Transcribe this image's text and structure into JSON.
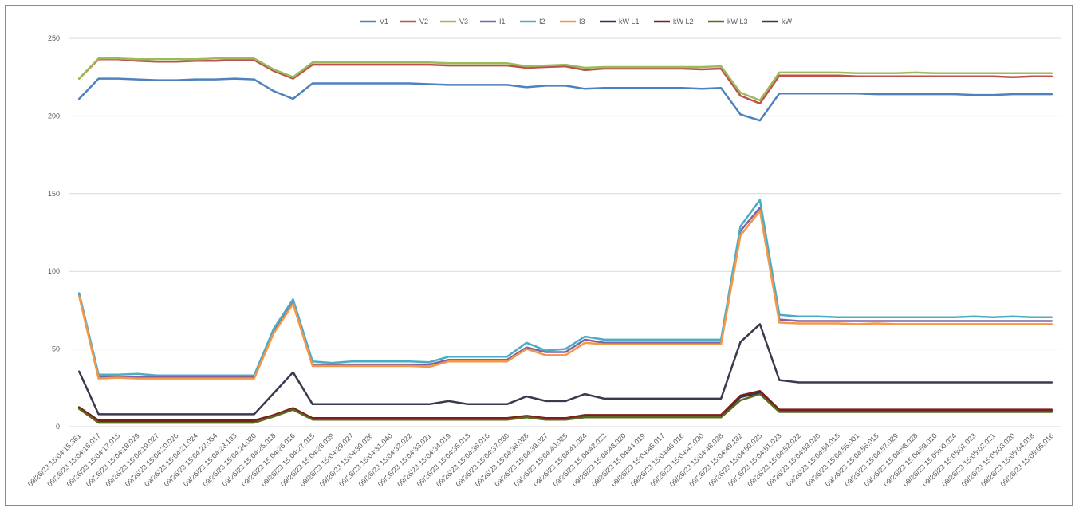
{
  "chart_data": {
    "type": "line",
    "title": "",
    "xlabel": "",
    "ylabel": "",
    "ylim": [
      0,
      250
    ],
    "yticks": [
      0,
      50,
      100,
      150,
      200,
      250
    ],
    "grid": true,
    "legend_position": "top",
    "categories": [
      "09/26/23 15:04:15.361",
      "09/26/23 15:04:16.017",
      "09/26/23 15:04:17.015",
      "09/26/23 15:04:18.029",
      "09/26/23 15:04:19.027",
      "09/26/23 15:04:20.026",
      "09/26/23 15:04:21.024",
      "09/26/23 15:04:22.054",
      "09/26/23 15:04:23.193",
      "09/26/23 15:04:24.020",
      "09/26/23 15:04:25.018",
      "09/26/23 15:04:26.016",
      "09/26/23 15:04:27.015",
      "09/26/23 15:04:28.039",
      "09/26/23 15:04:29.027",
      "09/26/23 15:04:30.026",
      "09/26/23 15:04:31.040",
      "09/26/23 15:04:32.022",
      "09/26/23 15:04:33.021",
      "09/26/23 15:04:34.019",
      "09/26/23 15:04:35.018",
      "09/26/23 15:04:36.016",
      "09/26/23 15:04:37.030",
      "09/26/23 15:04:38.028",
      "09/26/23 15:04:39.027",
      "09/26/23 15:04:40.025",
      "09/26/23 15:04:41.024",
      "09/26/23 15:04:42.022",
      "09/26/23 15:04:43.020",
      "09/26/23 15:04:44.019",
      "09/26/23 15:04:45.017",
      "09/26/23 15:04:46.016",
      "09/26/23 15:04:47.030",
      "09/26/23 15:04:48.028",
      "09/26/23 15:04:49.182",
      "09/26/23 15:04:50.025",
      "09/26/23 15:04:51.023",
      "09/26/23 15:04:52.022",
      "09/26/23 15:04:53.020",
      "09/26/23 15:04:54.018",
      "09/26/23 15:04:55.001",
      "09/26/23 15:04:56.015",
      "09/26/23 15:04:57.029",
      "09/26/23 15:04:58.028",
      "09/26/23 15:04:59.010",
      "09/26/23 15:05:00.024",
      "09/26/23 15:05:01.023",
      "09/26/23 15:05:02.021",
      "09/26/23 15:05:03.020",
      "09/26/23 15:05:04.018",
      "09/26/23 15:05:05.016"
    ],
    "series": [
      {
        "name": "V1",
        "color": "#4f81bd",
        "values": [
          211,
          224,
          224,
          223.5,
          223,
          223,
          223.5,
          223.5,
          224,
          223.5,
          216,
          211,
          221,
          221,
          221,
          221,
          221,
          221,
          220.5,
          220,
          220,
          220,
          220,
          218.5,
          219.5,
          219.5,
          217.5,
          218,
          218,
          218,
          218,
          218,
          217.5,
          218,
          201,
          197,
          214.5,
          214.5,
          214.5,
          214.5,
          214.5,
          214,
          214,
          214,
          214,
          214,
          213.5,
          213.5,
          214,
          214,
          214
        ]
      },
      {
        "name": "V2",
        "color": "#c0504d",
        "values": [
          224,
          236.5,
          236.5,
          235.5,
          235,
          235,
          235.5,
          235.5,
          236,
          236,
          229,
          224,
          233,
          233,
          233,
          233,
          233,
          233,
          233,
          232.5,
          232.5,
          232.5,
          232.5,
          231,
          231.5,
          232,
          229.5,
          230.5,
          230.5,
          230.5,
          230.5,
          230.5,
          230,
          230.5,
          213,
          208,
          226,
          226,
          226,
          226,
          225.5,
          225.5,
          225.5,
          225.5,
          225.5,
          225.5,
          225.5,
          225.5,
          225,
          225.5,
          225.5
        ]
      },
      {
        "name": "V3",
        "color": "#9bbb59",
        "values": [
          224,
          237,
          237,
          236.5,
          236.5,
          236.5,
          236.5,
          237,
          237,
          237,
          230,
          225,
          234.5,
          234.5,
          234.5,
          234.5,
          234.5,
          234.5,
          234.5,
          234,
          234,
          234,
          234,
          232,
          232.5,
          233,
          231,
          231.5,
          231.5,
          231.5,
          231.5,
          231.5,
          231.5,
          232,
          215,
          210,
          228,
          228,
          228,
          228,
          227.5,
          227.5,
          227.5,
          228,
          227.5,
          227.5,
          227.5,
          227.5,
          227.5,
          227.5,
          227.5
        ]
      },
      {
        "name": "I1",
        "color": "#8064a2",
        "values": [
          85,
          32,
          32,
          32,
          32,
          32,
          32,
          32,
          32,
          32,
          62,
          80,
          40,
          40,
          40,
          40,
          40,
          40,
          40,
          43,
          43,
          43,
          43,
          51,
          48,
          48,
          56,
          54,
          54,
          54,
          54,
          54,
          54,
          54,
          126,
          141,
          69,
          68,
          68,
          68,
          68,
          68,
          68,
          68,
          68,
          68,
          68,
          68,
          68,
          68,
          68
        ]
      },
      {
        "name": "I2",
        "color": "#4bacc6",
        "values": [
          86,
          33.5,
          33.5,
          34,
          33,
          33,
          33,
          33,
          33,
          33,
          63,
          82,
          42,
          41,
          42,
          42,
          42,
          42,
          41.5,
          45,
          45,
          45,
          45,
          54,
          49,
          50,
          58,
          56,
          56,
          56,
          56,
          56,
          56,
          56,
          129,
          146,
          72,
          71,
          71,
          70.5,
          70.5,
          70.5,
          70.5,
          70.5,
          70.5,
          70.5,
          71,
          70.5,
          71,
          70.5,
          70.5
        ]
      },
      {
        "name": "I3",
        "color": "#f79646",
        "values": [
          84,
          31,
          31.5,
          31,
          31,
          31,
          31,
          31,
          31,
          31,
          60,
          79,
          39,
          39,
          39,
          39,
          39,
          39,
          38.5,
          42,
          42,
          42,
          42,
          50,
          46,
          46,
          54,
          53,
          53,
          53,
          53,
          53,
          53,
          53,
          123,
          139,
          67,
          66.5,
          66.5,
          66.5,
          66,
          66.5,
          66,
          66,
          66,
          66,
          66,
          66,
          66,
          66,
          66
        ]
      },
      {
        "name": "kW L1",
        "color": "#1f3864",
        "values": [
          12,
          3.5,
          3.5,
          3.5,
          3.5,
          3.5,
          3.5,
          3.5,
          3.5,
          3.5,
          7,
          11.5,
          5,
          5,
          5,
          5,
          5,
          5,
          5,
          5,
          5,
          5,
          5,
          6.5,
          5,
          5,
          7,
          7,
          7,
          7,
          7,
          7,
          7,
          7,
          19,
          22,
          10,
          10,
          10,
          10,
          10,
          10,
          10,
          10,
          10,
          10,
          10,
          10,
          10,
          10,
          10
        ]
      },
      {
        "name": "kW L2",
        "color": "#7f1d1d",
        "values": [
          12.5,
          4,
          4,
          4,
          4,
          4,
          4,
          4,
          4,
          4,
          7.5,
          12,
          5.5,
          5.5,
          5.5,
          5.5,
          5.5,
          5.5,
          5.5,
          5.5,
          5.5,
          5.5,
          5.5,
          7,
          5.5,
          5.5,
          7.5,
          7.5,
          7.5,
          7.5,
          7.5,
          7.5,
          7.5,
          7.5,
          20,
          23,
          11,
          11,
          11,
          11,
          11,
          11,
          11,
          11,
          11,
          11,
          11,
          11,
          11,
          11,
          11
        ]
      },
      {
        "name": "kW L3",
        "color": "#5a6b1e",
        "values": [
          11.5,
          2.5,
          2.5,
          2.5,
          2.5,
          2.5,
          2.5,
          2.5,
          2.5,
          2.5,
          6.5,
          11,
          4.5,
          4.5,
          4.5,
          4.5,
          4.5,
          4.5,
          4.5,
          4.5,
          4.5,
          4.5,
          4.5,
          6,
          4.5,
          4.5,
          6,
          6,
          6,
          6,
          6,
          6,
          6,
          6,
          17,
          21,
          9.5,
          9.5,
          9.5,
          9.5,
          9.5,
          9.5,
          9.5,
          9.5,
          9.5,
          9.5,
          9.5,
          9.5,
          9.5,
          9.5,
          9.5
        ]
      },
      {
        "name": "kW",
        "color": "#3a3a4e",
        "values": [
          35.5,
          8,
          8,
          8,
          8,
          8,
          8,
          8,
          8,
          8,
          21.5,
          35,
          14.5,
          14.5,
          14.5,
          14.5,
          14.5,
          14.5,
          14.5,
          16.5,
          14.5,
          14.5,
          14.5,
          19.5,
          16.5,
          16.5,
          21,
          18,
          18,
          18,
          18,
          18,
          18,
          18,
          54.5,
          66,
          30,
          28.5,
          28.5,
          28.5,
          28.5,
          28.5,
          28.5,
          28.5,
          28.5,
          28.5,
          28.5,
          28.5,
          28.5,
          28.5,
          28.5
        ]
      }
    ]
  }
}
